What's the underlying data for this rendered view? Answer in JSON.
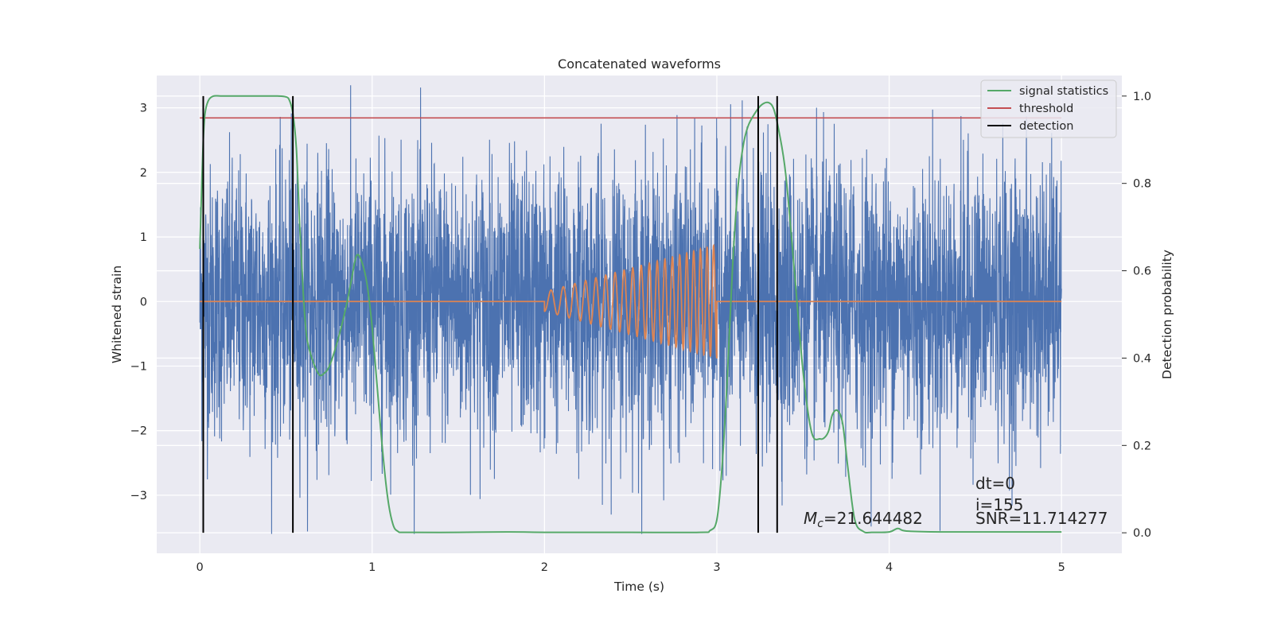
{
  "chart_data": {
    "type": "line",
    "title": "Concatenated waveforms",
    "xlabel": "Time (s)",
    "ylabel": "Whitened strain",
    "y2label": "Detection probability",
    "xlim": [
      -0.25,
      5.35
    ],
    "ylim": [
      -3.9,
      3.5
    ],
    "y2lim": [
      -0.047,
      1.047
    ],
    "xticks": [
      0,
      1,
      2,
      3,
      4,
      5
    ],
    "yticks": [
      -3,
      -2,
      -1,
      0,
      1,
      2,
      3
    ],
    "y2ticks": [
      0.0,
      0.2,
      0.4,
      0.6,
      0.8,
      1.0
    ],
    "xtick_labels": [
      "0",
      "1",
      "2",
      "3",
      "4",
      "5"
    ],
    "ytick_labels": [
      "−3",
      "−2",
      "−1",
      "0",
      "1",
      "2",
      "3"
    ],
    "y2tick_labels": [
      "0.0",
      "0.2",
      "0.4",
      "0.6",
      "0.8",
      "1.0"
    ],
    "grid": true,
    "legend_position": "top-right",
    "colors": {
      "background": "#eaeaf2",
      "noise": "#4c72b0",
      "template": "#dd8452",
      "signal_statistics": "#55a868",
      "threshold": "#c44e52",
      "detection": "#000000"
    },
    "series": [
      {
        "key": "strain",
        "axis": "left",
        "x_range": [
          0,
          5
        ],
        "amplitude_range": [
          -3.6,
          3.35
        ],
        "description_key": "noise"
      },
      {
        "key": "template",
        "axis": "left",
        "chirp_start": 2.0,
        "chirp_end": 3.0,
        "start_amplitude": 0.15,
        "end_amplitude": 0.88
      },
      {
        "name": "signal statistics",
        "axis": "right",
        "x": [
          0.0,
          0.01,
          0.02,
          0.03,
          0.05,
          0.08,
          0.12,
          0.2,
          0.3,
          0.4,
          0.45,
          0.5,
          0.52,
          0.54,
          0.56,
          0.58,
          0.6,
          0.62,
          0.65,
          0.68,
          0.7,
          0.72,
          0.75,
          0.8,
          0.85,
          0.88,
          0.91,
          0.94,
          0.97,
          1.0,
          1.03,
          1.06,
          1.09,
          1.12,
          1.15,
          1.2,
          1.5,
          1.8,
          2.0,
          2.5,
          2.9,
          2.96,
          3.0,
          3.03,
          3.06,
          3.09,
          3.12,
          3.15,
          3.18,
          3.22,
          3.26,
          3.3,
          3.33,
          3.36,
          3.4,
          3.45,
          3.5,
          3.55,
          3.6,
          3.63,
          3.65,
          3.67,
          3.7,
          3.73,
          3.76,
          3.8,
          3.85,
          3.9,
          4.0,
          4.05,
          4.1,
          4.3,
          4.6,
          5.0
        ],
        "y": [
          0.65,
          0.78,
          0.9,
          0.96,
          0.99,
          1.0,
          1.0,
          1.0,
          1.0,
          1.0,
          1.0,
          0.998,
          0.99,
          0.96,
          0.88,
          0.7,
          0.55,
          0.45,
          0.4,
          0.37,
          0.36,
          0.365,
          0.38,
          0.44,
          0.52,
          0.58,
          0.635,
          0.62,
          0.57,
          0.47,
          0.33,
          0.19,
          0.08,
          0.02,
          0.003,
          0.001,
          0.001,
          0.002,
          0.001,
          0.001,
          0.001,
          0.005,
          0.03,
          0.15,
          0.35,
          0.6,
          0.78,
          0.88,
          0.93,
          0.96,
          0.98,
          0.985,
          0.97,
          0.92,
          0.82,
          0.6,
          0.37,
          0.23,
          0.215,
          0.22,
          0.235,
          0.27,
          0.28,
          0.25,
          0.15,
          0.03,
          0.003,
          0.001,
          0.002,
          0.01,
          0.004,
          0.002,
          0.002,
          0.002
        ]
      },
      {
        "name": "threshold",
        "axis": "right",
        "x": [
          0,
          5
        ],
        "y": [
          0.95,
          0.95
        ]
      },
      {
        "name": "detection",
        "axis": "right",
        "x": [
          0.02,
          0.54,
          3.24,
          3.35
        ]
      }
    ],
    "legend": [
      "signal statistics",
      "threshold",
      "detection"
    ],
    "annotations": {
      "mc_symbol": "M",
      "mc_sub": "c",
      "mc_value": "=21.644482",
      "dt": "dt=0",
      "i": "i=155",
      "snr": "SNR=11.714277"
    }
  }
}
